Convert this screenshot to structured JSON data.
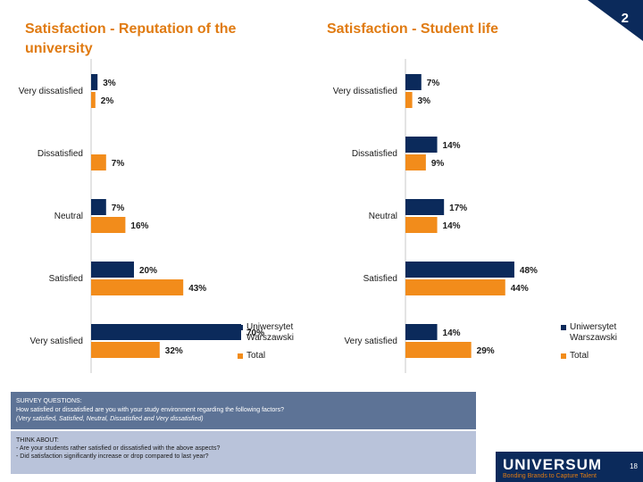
{
  "slide_number": "2",
  "footer": {
    "brand": "UNIVERSUM",
    "tagline": "Bonding Brands to Capture Talent",
    "page": "18"
  },
  "survey": {
    "heading": "SURVEY QUESTIONS:",
    "question": "How satisfied or dissatisfied are you with your study environment regarding the following factors?",
    "options": "(Very satisfied, Satisfied, Neutral, Dissatisfied and Very dissatisfied)"
  },
  "think_about": {
    "heading": "THINK ABOUT:",
    "line1": "- Are your students rather satisfied or dissatisfied with the above aspects?",
    "line2": "- Did satisfaction significantly increase or drop compared to last year?"
  },
  "colors": {
    "uw": "#0b2a5b",
    "total": "#f28c1b"
  },
  "chart_data": [
    {
      "type": "bar",
      "orientation": "horizontal",
      "title": "Satisfaction - Reputation of the university",
      "categories": [
        "Very dissatisfied",
        "Dissatisfied",
        "Neutral",
        "Satisfied",
        "Very satisfied"
      ],
      "series": [
        {
          "name": "Uniwersytet Warszawski",
          "values": [
            3,
            0,
            7,
            20,
            70
          ],
          "labels": [
            "3%",
            "",
            "7%",
            "20%",
            "70%"
          ]
        },
        {
          "name": "Total",
          "values": [
            2,
            7,
            16,
            43,
            32
          ],
          "labels": [
            "2%",
            "7%",
            "16%",
            "43%",
            "32%"
          ]
        }
      ],
      "xlim": [
        0,
        100
      ]
    },
    {
      "type": "bar",
      "orientation": "horizontal",
      "title": "Satisfaction - Student life",
      "categories": [
        "Very dissatisfied",
        "Dissatisfied",
        "Neutral",
        "Satisfied",
        "Very satisfied"
      ],
      "series": [
        {
          "name": "Uniwersytet Warszawski",
          "values": [
            7,
            14,
            17,
            48,
            14
          ],
          "labels": [
            "7%",
            "14%",
            "17%",
            "48%",
            "14%"
          ]
        },
        {
          "name": "Total",
          "values": [
            3,
            9,
            14,
            44,
            29
          ],
          "labels": [
            "3%",
            "9%",
            "14%",
            "44%",
            "29%"
          ]
        }
      ],
      "xlim": [
        0,
        100
      ]
    }
  ]
}
